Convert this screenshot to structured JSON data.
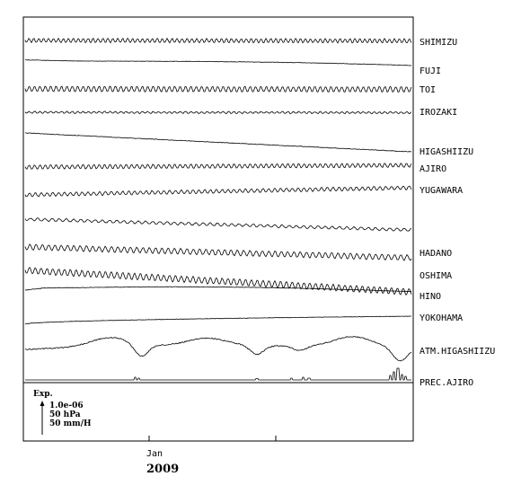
{
  "chart_data": {
    "type": "line",
    "x_tick_label": "Jan",
    "x_year_label": "2009",
    "series": [
      {
        "name": "SHIMIZU",
        "shape": "wavy",
        "amplitude": 2.2,
        "period": 5.5,
        "trend": 0.5
      },
      {
        "name": "FUJI",
        "shape": "smooth",
        "amplitude": 0.3,
        "period": 40,
        "trend": 5.0
      },
      {
        "name": "TOI",
        "shape": "wavy",
        "amplitude": 3.0,
        "period": 6.0,
        "trend": 0.5
      },
      {
        "name": "IROZAKI",
        "shape": "wavy",
        "amplitude": 1.0,
        "period": 6.0,
        "trend": 0.5
      },
      {
        "name": "HIGASHIIZU",
        "shape": "drift",
        "amplitude": 0.4,
        "period": 40,
        "trend": 21.0
      },
      {
        "name": "AJIRO",
        "shape": "wavy",
        "amplitude": 2.2,
        "period": 6.0,
        "trend": -2.0
      },
      {
        "name": "YUGAWARA",
        "shape": "wavy",
        "amplitude": 2.0,
        "period": 6.5,
        "trend": -8.0
      },
      {
        "name": "",
        "shape": "wavy",
        "amplitude": 1.5,
        "period": 8.0,
        "trend": 12.0
      },
      {
        "name": "HADANO",
        "shape": "wavy",
        "amplitude": 3.0,
        "period": 7.0,
        "trend": 12.0
      },
      {
        "name": "OSHIMA",
        "shape": "wavy",
        "amplitude": 3.5,
        "period": 6.5,
        "trend": 24.0
      },
      {
        "name": "HINO",
        "shape": "hump",
        "amplitude": 0.5,
        "period": 40,
        "trend": 5.0
      },
      {
        "name": "YOKOHAMA",
        "shape": "rise",
        "amplitude": 0.4,
        "period": 40,
        "trend": -8.0
      },
      {
        "name": "ATM.HIGASHIIZU",
        "shape": "pressure",
        "amplitude": 1.0,
        "period": 8.0,
        "trend": 0
      },
      {
        "name": "PREC.AJIRO",
        "shape": "precip",
        "amplitude": 0,
        "period": 0,
        "trend": 0
      }
    ],
    "scale": {
      "title": "Exp.",
      "lines": [
        "1.0e-06",
        "50 hPa",
        "50 mm/H"
      ]
    }
  }
}
